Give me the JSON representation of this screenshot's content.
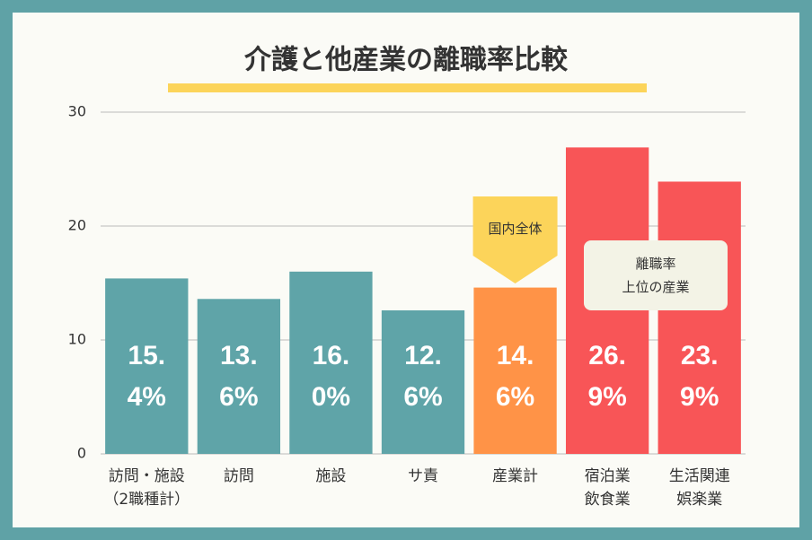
{
  "chart_data": {
    "type": "bar",
    "title": "介護と他産業の離職率比較",
    "categories": [
      "訪問・施設\n（2職種計）",
      "訪問",
      "施設",
      "サ責",
      "産業計",
      "宿泊業\n飲食業",
      "生活関連\n娯楽業"
    ],
    "values": [
      15.4,
      13.6,
      16.0,
      12.6,
      14.6,
      26.9,
      23.9
    ],
    "value_labels": [
      "15.4%",
      "13.6%",
      "16.0%",
      "12.6%",
      "14.6%",
      "26.9%",
      "23.9%"
    ],
    "colors": [
      "#5fa4a8",
      "#5fa4a8",
      "#5fa4a8",
      "#5fa4a8",
      "#ff9347",
      "#f85557",
      "#f85557"
    ],
    "ylim": [
      0,
      30
    ],
    "yticks": [
      0,
      10,
      20,
      30
    ],
    "grid": true,
    "annotations": [
      "国内全体",
      "離職率\n上位の産業"
    ]
  }
}
